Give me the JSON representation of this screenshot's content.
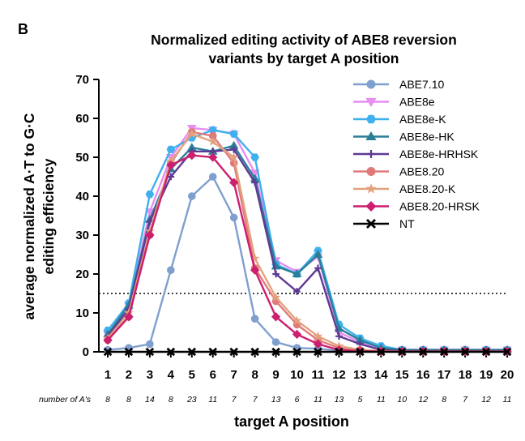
{
  "panel_label": "B",
  "chart_data": {
    "type": "line",
    "title_lines": [
      "Normalized editing activity of ABE8 reversion",
      "variants by target A position"
    ],
    "ylabel_lines": [
      "average normalized A·T to G·C",
      "editing efficiency"
    ],
    "xlabel": "target A position",
    "x": [
      1,
      2,
      3,
      4,
      5,
      6,
      7,
      8,
      9,
      10,
      11,
      12,
      13,
      14,
      15,
      16,
      17,
      18,
      19,
      20
    ],
    "ylim": [
      0,
      70
    ],
    "yticks": [
      0,
      10,
      20,
      30,
      40,
      50,
      60,
      70
    ],
    "count_label": "number of A's",
    "counts": [
      "8",
      "8",
      "14",
      "8",
      "23",
      "11",
      "7",
      "7",
      "13",
      "6",
      "11",
      "13",
      "5",
      "11",
      "10",
      "12",
      "8",
      "7",
      "12",
      "11"
    ],
    "threshold": 15,
    "legend_position": "top-right",
    "series": [
      {
        "name": "ABE7.10",
        "color": "#7f9fcf",
        "marker": "circle",
        "values": [
          0.5,
          1,
          2,
          21,
          40,
          45,
          34.5,
          8.5,
          2.5,
          1,
          0.8,
          0.3,
          0.2,
          0.1,
          0,
          0,
          0,
          0,
          0,
          0
        ]
      },
      {
        "name": "ABE8e",
        "color": "#e78ef0",
        "marker": "triangle-down",
        "values": [
          4.5,
          12,
          36,
          50,
          57.5,
          57,
          56,
          46,
          23.5,
          20.5,
          24.5,
          5,
          2.5,
          1,
          0.5,
          0.5,
          0.5,
          0.5,
          0.5,
          0.5
        ]
      },
      {
        "name": "ABE8e-K",
        "color": "#3fb0ee",
        "marker": "hexagon",
        "values": [
          5.5,
          12.5,
          40.5,
          52,
          55,
          57,
          56,
          50,
          22.5,
          20,
          26,
          7,
          3.5,
          1.5,
          0.5,
          0.5,
          0.5,
          0.5,
          0.5,
          0.5
        ]
      },
      {
        "name": "ABE8e-HK",
        "color": "#2a7f97",
        "marker": "triangle-up",
        "values": [
          4.5,
          12,
          34,
          47,
          52.5,
          51.5,
          53,
          44.5,
          22,
          20,
          25,
          6,
          3,
          1,
          0.5,
          0.5,
          0.5,
          0.5,
          0.5,
          0.5
        ]
      },
      {
        "name": "ABE8e-HRHSK",
        "color": "#5e3a94",
        "marker": "plus",
        "values": [
          4,
          11,
          33.5,
          45,
          51.5,
          51.5,
          52,
          43.5,
          20,
          15.5,
          21.5,
          4,
          2,
          0.5,
          0.2,
          0.2,
          0.2,
          0.2,
          0.2,
          0.2
        ]
      },
      {
        "name": "ABE8.20",
        "color": "#e07a7a",
        "marker": "circle",
        "values": [
          3,
          9,
          30,
          48.5,
          56.5,
          55.5,
          48.5,
          21.5,
          13,
          7,
          3,
          1,
          0.5,
          0.2,
          0.1,
          0.1,
          0.1,
          0.1,
          0.1,
          0.1
        ]
      },
      {
        "name": "ABE8.20-K",
        "color": "#e3a27f",
        "marker": "star",
        "values": [
          3.5,
          10,
          31,
          49,
          56,
          54,
          50,
          24,
          14,
          8,
          4,
          1.5,
          0.5,
          0.2,
          0.1,
          0.1,
          0.1,
          0.1,
          0.1,
          0.1
        ]
      },
      {
        "name": "ABE8.20-HRSK",
        "color": "#cc1f6f",
        "marker": "diamond",
        "values": [
          3,
          9,
          30,
          48,
          50.5,
          50,
          43.5,
          21,
          9,
          4.5,
          2,
          0.5,
          0.2,
          0.1,
          0.1,
          0.1,
          0.1,
          0.1,
          0.1,
          0.1
        ]
      },
      {
        "name": "NT",
        "color": "#000000",
        "marker": "x",
        "values": [
          0,
          0,
          0,
          0,
          0,
          0,
          0,
          0,
          0,
          0,
          0,
          0,
          0,
          0,
          0,
          0,
          0,
          0,
          0,
          0
        ]
      }
    ]
  }
}
